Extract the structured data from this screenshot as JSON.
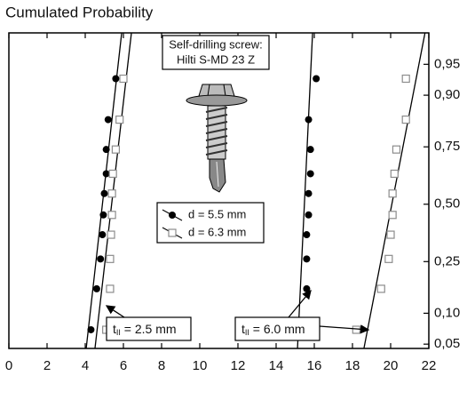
{
  "chart_data": {
    "type": "scatter",
    "title": "Cumulated Probability",
    "yscale": "probability",
    "xlim": [
      0,
      22
    ],
    "xticks": [
      0,
      2,
      4,
      6,
      8,
      10,
      12,
      14,
      16,
      18,
      20,
      22
    ],
    "ylim": [
      0.045,
      0.978
    ],
    "yticks": [
      {
        "value": 0.05,
        "label": "0,05"
      },
      {
        "value": 0.1,
        "label": "0,10"
      },
      {
        "value": 0.25,
        "label": "0,25"
      },
      {
        "value": 0.5,
        "label": "0,50"
      },
      {
        "value": 0.75,
        "label": "0,75"
      },
      {
        "value": 0.9,
        "label": "0,90"
      },
      {
        "value": 0.95,
        "label": "0,95"
      }
    ],
    "series": [
      {
        "name": "d = 5.5 mm",
        "marker": "circle",
        "color": "#000000",
        "x": [
          4.3,
          4.6,
          4.8,
          4.9,
          4.95,
          5.0,
          5.1,
          5.1,
          5.2,
          5.6,
          15.3,
          15.6,
          15.6,
          15.6,
          15.7,
          15.7,
          15.8,
          15.8,
          15.7,
          16.1
        ],
        "values": [
          0.07,
          0.16,
          0.26,
          0.36,
          0.45,
          0.55,
          0.64,
          0.74,
          0.84,
          0.93,
          0.07,
          0.16,
          0.26,
          0.36,
          0.45,
          0.55,
          0.64,
          0.74,
          0.84,
          0.93
        ]
      },
      {
        "name": "d = 6.3 mm",
        "marker": "square",
        "color": "#8c8c8c",
        "x": [
          5.1,
          5.3,
          5.3,
          5.35,
          5.4,
          5.4,
          5.45,
          5.6,
          5.8,
          6.0,
          18.2,
          19.5,
          19.9,
          20.0,
          20.1,
          20.1,
          20.2,
          20.3,
          20.8,
          20.8
        ],
        "values": [
          0.07,
          0.16,
          0.26,
          0.36,
          0.45,
          0.55,
          0.64,
          0.74,
          0.84,
          0.93,
          0.07,
          0.16,
          0.26,
          0.36,
          0.45,
          0.55,
          0.64,
          0.74,
          0.84,
          0.93
        ]
      }
    ],
    "fit_lines": [
      {
        "x": [
          4.05,
          5.91
        ],
        "p": [
          0.045,
          0.978
        ]
      },
      {
        "x": [
          4.51,
          6.42
        ],
        "p": [
          0.045,
          0.978
        ]
      },
      {
        "x": [
          15.12,
          15.91
        ],
        "p": [
          0.045,
          0.978
        ]
      },
      {
        "x": [
          18.6,
          21.8
        ],
        "p": [
          0.045,
          0.978
        ]
      }
    ],
    "product_box": [
      "Self-drilling screw:",
      "Hilti S-MD 23 Z"
    ],
    "annotations": [
      {
        "symbol": "t",
        "subscript": "II",
        "text": " = 2.5 mm"
      },
      {
        "symbol": "t",
        "subscript": "II",
        "text": " = 6.0 mm"
      }
    ]
  }
}
